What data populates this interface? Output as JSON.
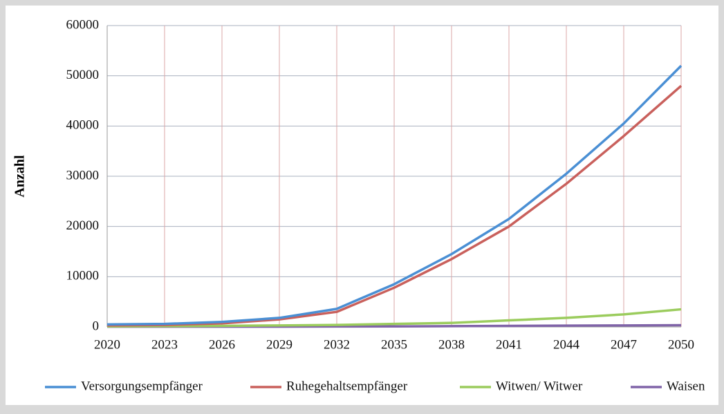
{
  "chart_data": {
    "type": "line",
    "y_label": "Anzahl",
    "x": [
      2020,
      2023,
      2026,
      2029,
      2032,
      2035,
      2038,
      2041,
      2044,
      2047,
      2050
    ],
    "series": [
      {
        "name": "Versorgungsempfänger",
        "color": "#4a8fd4",
        "values": [
          500,
          600,
          1000,
          1800,
          3600,
          8500,
          14500,
          21500,
          30500,
          40500,
          52000
        ]
      },
      {
        "name": "Ruhegehaltsempfänger",
        "color": "#c9605c",
        "values": [
          300,
          400,
          700,
          1500,
          3000,
          7800,
          13500,
          20000,
          28500,
          38000,
          48000
        ]
      },
      {
        "name": "Witwen/ Witwer",
        "color": "#9bcc5d",
        "values": [
          100,
          150,
          200,
          300,
          400,
          600,
          800,
          1300,
          1800,
          2500,
          3500
        ]
      },
      {
        "name": "Waisen",
        "color": "#8064a8",
        "values": [
          50,
          50,
          50,
          60,
          80,
          100,
          150,
          200,
          250,
          300,
          350
        ]
      }
    ],
    "xlim": [
      2020,
      2050
    ],
    "xticks": [
      2020,
      2023,
      2026,
      2029,
      2032,
      2035,
      2038,
      2041,
      2044,
      2047,
      2050
    ],
    "ylim": [
      0,
      60000
    ],
    "yticks": [
      0,
      10000,
      20000,
      30000,
      40000,
      50000,
      60000
    ],
    "grid": true,
    "legend": "bottom"
  }
}
